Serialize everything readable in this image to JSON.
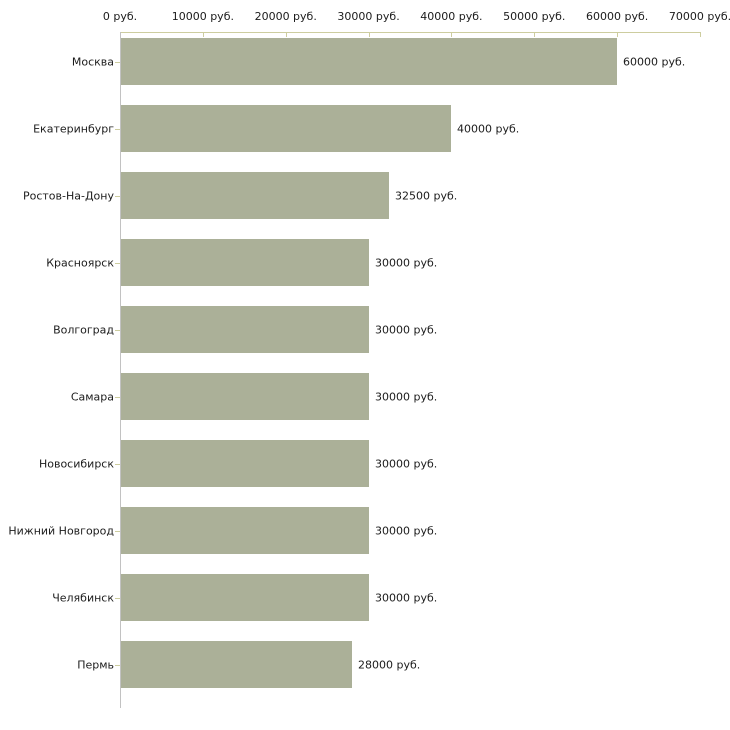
{
  "chart_data": {
    "type": "bar",
    "orientation": "horizontal",
    "title": "",
    "categories": [
      "Москва",
      "Екатеринбург",
      "Ростов-На-Дону",
      "Красноярск",
      "Волгоград",
      "Самара",
      "Новосибирск",
      "Нижний Новгород",
      "Челябинск",
      "Пермь"
    ],
    "values": [
      60000,
      40000,
      32500,
      30000,
      30000,
      30000,
      30000,
      30000,
      30000,
      28000
    ],
    "value_labels": [
      "60000 руб.",
      "40000 руб.",
      "32500 руб.",
      "30000 руб.",
      "30000 руб.",
      "30000 руб.",
      "30000 руб.",
      "30000 руб.",
      "30000 руб.",
      "28000 руб."
    ],
    "unit": "руб.",
    "x_axis": {
      "position": "top",
      "min": 0,
      "max": 70000,
      "tick_step": 10000,
      "tick_values": [
        0,
        10000,
        20000,
        30000,
        40000,
        50000,
        60000,
        70000
      ],
      "tick_labels": [
        "0 руб.",
        "10000 руб.",
        "20000 руб.",
        "30000 руб.",
        "40000 руб.",
        "50000 руб.",
        "60000 руб.",
        "70000 руб."
      ]
    },
    "grid": false,
    "legend": null,
    "colors": {
      "bar": "#abb098",
      "axis_line": "#cdcd9f",
      "tick": "#cdcd9f",
      "category_axis_line": "#c2c2c2",
      "text": "#1c1c1c",
      "background": "#ffffff"
    }
  }
}
